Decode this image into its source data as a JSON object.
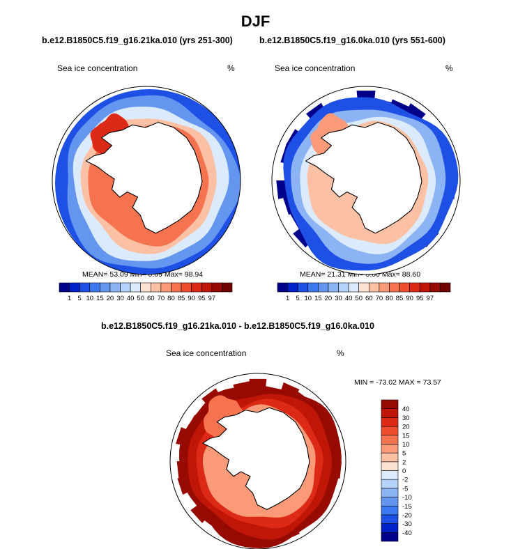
{
  "title": "DJF",
  "colors": {
    "concentration_scale": [
      "#00008b",
      "#0020c8",
      "#1e50e6",
      "#3c78f0",
      "#6496f0",
      "#8cb4f5",
      "#b4d2fa",
      "#dcebfc",
      "#fde2d2",
      "#fcc0a4",
      "#fa9a78",
      "#f5734f",
      "#ee4e2e",
      "#dc2a16",
      "#c01608",
      "#960a00",
      "#6e0000"
    ],
    "difference_scale": [
      "#00008b",
      "#0020c8",
      "#1e50e6",
      "#3c78f0",
      "#6496f0",
      "#8cb4f5",
      "#b4d2fa",
      "#dcebfc",
      "#fde2d2",
      "#fcc0a4",
      "#fa9a78",
      "#f5734f",
      "#ee4e2e",
      "#dc2a16",
      "#c01608",
      "#960a00"
    ],
    "land": "#ffffff",
    "coast": "#000000"
  },
  "chart_data": [
    {
      "type": "heatmap",
      "projection": "south-polar-stereographic",
      "case_title": "b.e12.B1850C5.f19_g16.21ka.010 (yrs 251-300)",
      "variable": "Sea ice concentration",
      "units": "%",
      "stats": {
        "mean": "53.09",
        "min": "0.09",
        "max": "98.94"
      },
      "stats_text": "MEAN=  53.09  Min=   0.09  Max=  98.94",
      "colorbar_levels": [
        "1",
        "5",
        "10",
        "15",
        "20",
        "30",
        "40",
        "50",
        "60",
        "70",
        "80",
        "85",
        "90",
        "95",
        "97"
      ],
      "zones": [
        {
          "field": "ocean-edge",
          "value": 5
        },
        {
          "field": "ocean-outer",
          "value": 15
        },
        {
          "field": "ocean-mid",
          "value": 40
        },
        {
          "field": "ice-pack",
          "value": 65
        },
        {
          "field": "ice-coastal",
          "value": 82
        },
        {
          "field": "ice-weddell",
          "value": 93
        }
      ]
    },
    {
      "type": "heatmap",
      "projection": "south-polar-stereographic",
      "case_title": "b.e12.B1850C5.f19_g16.0ka.010 (yrs 551-600)",
      "variable": "Sea ice concentration",
      "units": "%",
      "stats": {
        "mean": "21.31",
        "min": "0.00",
        "max": "88.60"
      },
      "stats_text": "MEAN=  21.31  Min=   0.00  Max=  88.60",
      "colorbar_levels": [
        "1",
        "5",
        "10",
        "15",
        "20",
        "30",
        "40",
        "50",
        "60",
        "70",
        "80",
        "85",
        "90",
        "95",
        "97"
      ],
      "zones": [
        {
          "field": "ocean-edge",
          "value": 0.5
        },
        {
          "field": "ocean-outer",
          "value": 8
        },
        {
          "field": "ocean-mid",
          "value": 25
        },
        {
          "field": "ice-pack",
          "value": 45
        },
        {
          "field": "ice-coastal",
          "value": 62
        },
        {
          "field": "ice-weddell",
          "value": 72
        }
      ]
    },
    {
      "type": "heatmap",
      "projection": "south-polar-stereographic",
      "case_title": "b.e12.B1850C5.f19_g16.21ka.010 - b.e12.B1850C5.f19_g16.0ka.010",
      "variable": "Sea ice concentration",
      "units": "%",
      "min_max_text": "MIN = -73.02 MAX =  73.57",
      "stats": {
        "min": "-73.02",
        "max": "73.57"
      },
      "colorbar_levels": [
        "-40",
        "-30",
        "-20",
        "-15",
        "-10",
        "-5",
        "-2",
        "0",
        "2",
        "5",
        "10",
        "15",
        "20",
        "30",
        "40"
      ],
      "zones": [
        {
          "field": "ocean-edge",
          "value": 45
        },
        {
          "field": "ocean-outer",
          "value": 45
        },
        {
          "field": "ocean-mid",
          "value": 35
        },
        {
          "field": "ice-pack",
          "value": 22
        },
        {
          "field": "ice-coastal",
          "value": 8
        },
        {
          "field": "ice-weddell",
          "value": 12
        }
      ]
    }
  ]
}
